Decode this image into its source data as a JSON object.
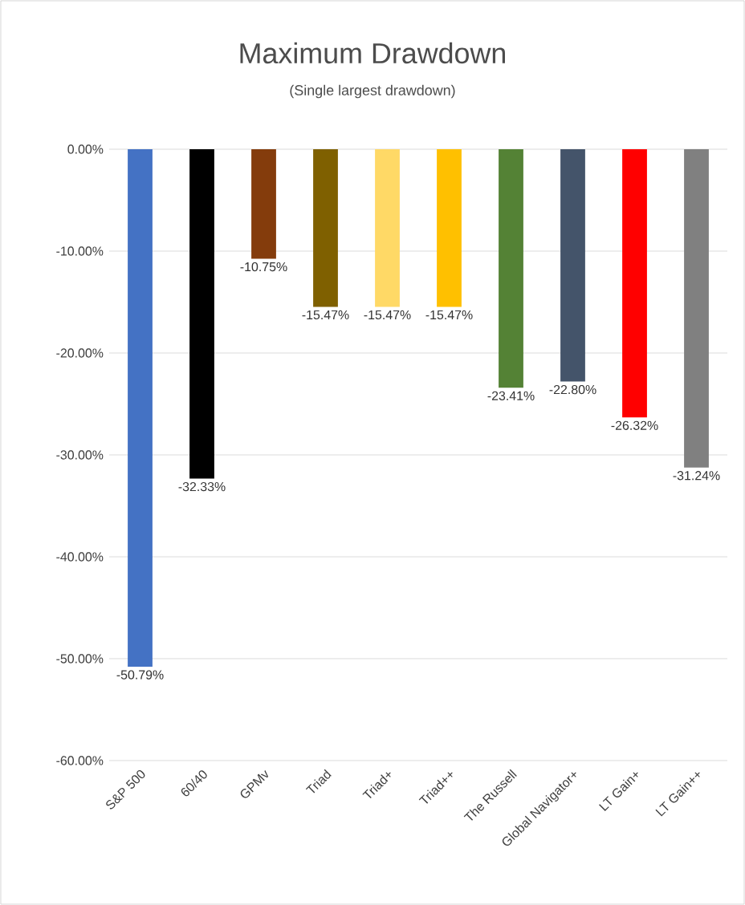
{
  "chart_data": {
    "type": "bar",
    "title": "Maximum Drawdown",
    "subtitle": "(Single largest drawdown)",
    "categories": [
      "S&P 500",
      "60/40",
      "GPMv",
      "Triad",
      "Triad+",
      "Triad++",
      "The Russell",
      "Global Navigator+",
      "LT Gain+",
      "LT Gain++"
    ],
    "values": [
      -50.79,
      -32.33,
      -10.75,
      -15.47,
      -15.47,
      -15.47,
      -23.41,
      -22.8,
      -26.32,
      -31.24
    ],
    "value_labels": [
      "-50.79%",
      "-32.33%",
      "-10.75%",
      "-15.47%",
      "-15.47%",
      "-15.47%",
      "-23.41%",
      "-22.80%",
      "-26.32%",
      "-31.24%"
    ],
    "colors": [
      "#4472c4",
      "#000000",
      "#843c0c",
      "#7f6000",
      "#ffd966",
      "#ffc000",
      "#548235",
      "#44546a",
      "#ff0000",
      "#808080"
    ],
    "ylim": [
      -60,
      0
    ],
    "yticks": [
      {
        "value": 0,
        "label": "0.00%"
      },
      {
        "value": -10,
        "label": "-10.00%"
      },
      {
        "value": -20,
        "label": "-20.00%"
      },
      {
        "value": -30,
        "label": "-30.00%"
      },
      {
        "value": -40,
        "label": "-40.00%"
      },
      {
        "value": -50,
        "label": "-50.00%"
      },
      {
        "value": -60,
        "label": "-60.00%"
      }
    ],
    "grid": "y"
  }
}
